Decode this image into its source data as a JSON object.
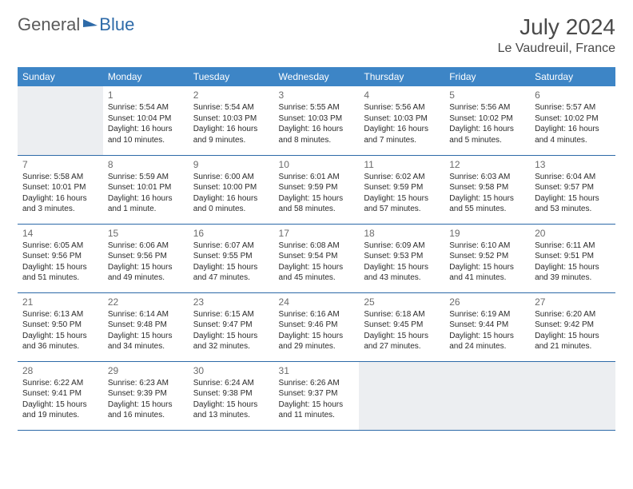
{
  "logo": {
    "part1": "General",
    "part2": "Blue"
  },
  "title": "July 2024",
  "location": "Le Vaudreuil, France",
  "weekdays": [
    "Sunday",
    "Monday",
    "Tuesday",
    "Wednesday",
    "Thursday",
    "Friday",
    "Saturday"
  ],
  "colors": {
    "header_bg": "#3d85c6",
    "header_text": "#ffffff",
    "border": "#2d6aa8",
    "blank_bg": "#eceef1",
    "logo_gray": "#5a5a5a",
    "logo_blue": "#2d6aa8"
  },
  "typography": {
    "title_fontsize": 28,
    "location_fontsize": 16,
    "weekday_fontsize": 12,
    "daynum_fontsize": 12,
    "cell_fontsize": 10
  },
  "grid": {
    "rows": 5,
    "cols": 7,
    "leading_blanks": 1,
    "trailing_blanks": 3
  },
  "days": [
    {
      "n": "1",
      "sunrise": "Sunrise: 5:54 AM",
      "sunset": "Sunset: 10:04 PM",
      "daylight": "Daylight: 16 hours and 10 minutes."
    },
    {
      "n": "2",
      "sunrise": "Sunrise: 5:54 AM",
      "sunset": "Sunset: 10:03 PM",
      "daylight": "Daylight: 16 hours and 9 minutes."
    },
    {
      "n": "3",
      "sunrise": "Sunrise: 5:55 AM",
      "sunset": "Sunset: 10:03 PM",
      "daylight": "Daylight: 16 hours and 8 minutes."
    },
    {
      "n": "4",
      "sunrise": "Sunrise: 5:56 AM",
      "sunset": "Sunset: 10:03 PM",
      "daylight": "Daylight: 16 hours and 7 minutes."
    },
    {
      "n": "5",
      "sunrise": "Sunrise: 5:56 AM",
      "sunset": "Sunset: 10:02 PM",
      "daylight": "Daylight: 16 hours and 5 minutes."
    },
    {
      "n": "6",
      "sunrise": "Sunrise: 5:57 AM",
      "sunset": "Sunset: 10:02 PM",
      "daylight": "Daylight: 16 hours and 4 minutes."
    },
    {
      "n": "7",
      "sunrise": "Sunrise: 5:58 AM",
      "sunset": "Sunset: 10:01 PM",
      "daylight": "Daylight: 16 hours and 3 minutes."
    },
    {
      "n": "8",
      "sunrise": "Sunrise: 5:59 AM",
      "sunset": "Sunset: 10:01 PM",
      "daylight": "Daylight: 16 hours and 1 minute."
    },
    {
      "n": "9",
      "sunrise": "Sunrise: 6:00 AM",
      "sunset": "Sunset: 10:00 PM",
      "daylight": "Daylight: 16 hours and 0 minutes."
    },
    {
      "n": "10",
      "sunrise": "Sunrise: 6:01 AM",
      "sunset": "Sunset: 9:59 PM",
      "daylight": "Daylight: 15 hours and 58 minutes."
    },
    {
      "n": "11",
      "sunrise": "Sunrise: 6:02 AM",
      "sunset": "Sunset: 9:59 PM",
      "daylight": "Daylight: 15 hours and 57 minutes."
    },
    {
      "n": "12",
      "sunrise": "Sunrise: 6:03 AM",
      "sunset": "Sunset: 9:58 PM",
      "daylight": "Daylight: 15 hours and 55 minutes."
    },
    {
      "n": "13",
      "sunrise": "Sunrise: 6:04 AM",
      "sunset": "Sunset: 9:57 PM",
      "daylight": "Daylight: 15 hours and 53 minutes."
    },
    {
      "n": "14",
      "sunrise": "Sunrise: 6:05 AM",
      "sunset": "Sunset: 9:56 PM",
      "daylight": "Daylight: 15 hours and 51 minutes."
    },
    {
      "n": "15",
      "sunrise": "Sunrise: 6:06 AM",
      "sunset": "Sunset: 9:56 PM",
      "daylight": "Daylight: 15 hours and 49 minutes."
    },
    {
      "n": "16",
      "sunrise": "Sunrise: 6:07 AM",
      "sunset": "Sunset: 9:55 PM",
      "daylight": "Daylight: 15 hours and 47 minutes."
    },
    {
      "n": "17",
      "sunrise": "Sunrise: 6:08 AM",
      "sunset": "Sunset: 9:54 PM",
      "daylight": "Daylight: 15 hours and 45 minutes."
    },
    {
      "n": "18",
      "sunrise": "Sunrise: 6:09 AM",
      "sunset": "Sunset: 9:53 PM",
      "daylight": "Daylight: 15 hours and 43 minutes."
    },
    {
      "n": "19",
      "sunrise": "Sunrise: 6:10 AM",
      "sunset": "Sunset: 9:52 PM",
      "daylight": "Daylight: 15 hours and 41 minutes."
    },
    {
      "n": "20",
      "sunrise": "Sunrise: 6:11 AM",
      "sunset": "Sunset: 9:51 PM",
      "daylight": "Daylight: 15 hours and 39 minutes."
    },
    {
      "n": "21",
      "sunrise": "Sunrise: 6:13 AM",
      "sunset": "Sunset: 9:50 PM",
      "daylight": "Daylight: 15 hours and 36 minutes."
    },
    {
      "n": "22",
      "sunrise": "Sunrise: 6:14 AM",
      "sunset": "Sunset: 9:48 PM",
      "daylight": "Daylight: 15 hours and 34 minutes."
    },
    {
      "n": "23",
      "sunrise": "Sunrise: 6:15 AM",
      "sunset": "Sunset: 9:47 PM",
      "daylight": "Daylight: 15 hours and 32 minutes."
    },
    {
      "n": "24",
      "sunrise": "Sunrise: 6:16 AM",
      "sunset": "Sunset: 9:46 PM",
      "daylight": "Daylight: 15 hours and 29 minutes."
    },
    {
      "n": "25",
      "sunrise": "Sunrise: 6:18 AM",
      "sunset": "Sunset: 9:45 PM",
      "daylight": "Daylight: 15 hours and 27 minutes."
    },
    {
      "n": "26",
      "sunrise": "Sunrise: 6:19 AM",
      "sunset": "Sunset: 9:44 PM",
      "daylight": "Daylight: 15 hours and 24 minutes."
    },
    {
      "n": "27",
      "sunrise": "Sunrise: 6:20 AM",
      "sunset": "Sunset: 9:42 PM",
      "daylight": "Daylight: 15 hours and 21 minutes."
    },
    {
      "n": "28",
      "sunrise": "Sunrise: 6:22 AM",
      "sunset": "Sunset: 9:41 PM",
      "daylight": "Daylight: 15 hours and 19 minutes."
    },
    {
      "n": "29",
      "sunrise": "Sunrise: 6:23 AM",
      "sunset": "Sunset: 9:39 PM",
      "daylight": "Daylight: 15 hours and 16 minutes."
    },
    {
      "n": "30",
      "sunrise": "Sunrise: 6:24 AM",
      "sunset": "Sunset: 9:38 PM",
      "daylight": "Daylight: 15 hours and 13 minutes."
    },
    {
      "n": "31",
      "sunrise": "Sunrise: 6:26 AM",
      "sunset": "Sunset: 9:37 PM",
      "daylight": "Daylight: 15 hours and 11 minutes."
    }
  ]
}
